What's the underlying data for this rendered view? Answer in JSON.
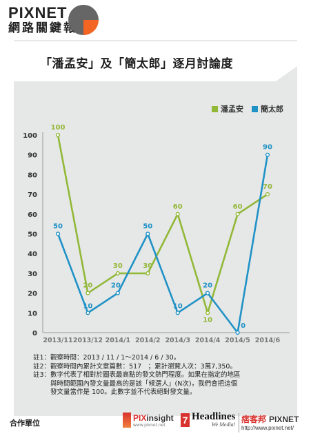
{
  "brand": {
    "name": "PIXNET",
    "subtitle": "網路關鍵報告"
  },
  "title": "「潘孟安」及「簡太郎」逐月討論度",
  "colors": {
    "green": "#92b838",
    "blue": "#1f92c6",
    "accent": "#f26522",
    "grey_pie": "#666666",
    "bg": "#e6e7e7"
  },
  "chart_data": {
    "type": "line",
    "categories": [
      "2013/11",
      "2013/12",
      "2014/1",
      "2014/2",
      "2014/3",
      "2014/4",
      "2014/5",
      "2014/6"
    ],
    "series": [
      {
        "name": "潘孟安",
        "color": "#92b838",
        "values": [
          100,
          20,
          30,
          30,
          60,
          10,
          60,
          70
        ]
      },
      {
        "name": "簡太郎",
        "color": "#1f92c6",
        "values": [
          50,
          10,
          20,
          50,
          10,
          20,
          0,
          90
        ]
      }
    ],
    "yticks": [
      0,
      10,
      20,
      30,
      40,
      50,
      60,
      70,
      80,
      90,
      100
    ],
    "ylim": [
      0,
      100
    ],
    "grid": false,
    "legend": "top-right",
    "data_labels": true
  },
  "notes": [
    {
      "key": "註1：",
      "text": "觀察時間：2013 / 11 / 1～2014 / 6 / 30。"
    },
    {
      "key": "註2：",
      "text": "觀察時間內累計文章篇數：517　；累計瀏覽人次：3萬7,350。"
    },
    {
      "key": "註3：",
      "text": "數字代表了相對於圖表最高點的發文熱門程度。如果在指定的地區\n與時間範圍內發文量最高的是該「候選人」(N次)，我們會把這個\n發文量當作是 100。此數字並不代表絕對發文量。"
    }
  ],
  "footer": {
    "partner_label": "合作單位",
    "pixinsight": {
      "name_a": "PIX",
      "name_b": "insight",
      "url": "www.pixnet.net"
    },
    "headlines": {
      "number": "7",
      "name": "Headlines",
      "tagline": "We Media!"
    },
    "pixnet": {
      "cn": "痞客邦",
      "en": "PIXNET",
      "url": "http://www.pixnet.net/"
    }
  }
}
